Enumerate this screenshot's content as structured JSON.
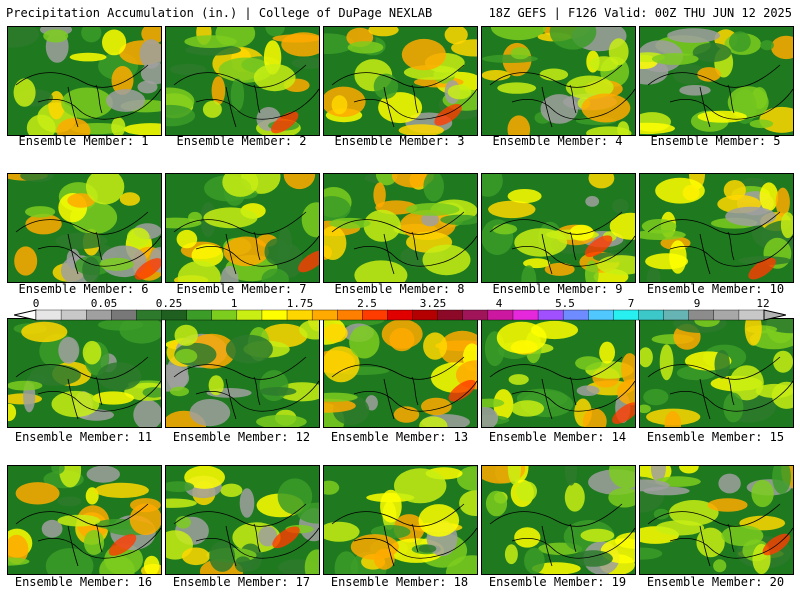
{
  "header": {
    "title": "Precipitation Accumulation (in.) | College of DuPage NEXLAB",
    "run_info": "18Z GEFS | F126 Valid: 00Z THU JUN 12 2025"
  },
  "members": [
    {
      "label": "Ensemble Member: 1"
    },
    {
      "label": "Ensemble Member: 2"
    },
    {
      "label": "Ensemble Member: 3"
    },
    {
      "label": "Ensemble Member: 4"
    },
    {
      "label": "Ensemble Member: 5"
    },
    {
      "label": "Ensemble Member: 6"
    },
    {
      "label": "Ensemble Member: 7"
    },
    {
      "label": "Ensemble Member: 8"
    },
    {
      "label": "Ensemble Member: 9"
    },
    {
      "label": "Ensemble Member: 10"
    },
    {
      "label": "Ensemble Member: 11"
    },
    {
      "label": "Ensemble Member: 12"
    },
    {
      "label": "Ensemble Member: 13"
    },
    {
      "label": "Ensemble Member: 14"
    },
    {
      "label": "Ensemble Member: 15"
    },
    {
      "label": "Ensemble Member: 16"
    },
    {
      "label": "Ensemble Member: 17"
    },
    {
      "label": "Ensemble Member: 18"
    },
    {
      "label": "Ensemble Member: 19"
    },
    {
      "label": "Ensemble Member: 20"
    }
  ],
  "color_scale": {
    "tick_labels": [
      "0",
      "0.05",
      "0.25",
      "1",
      "1.75",
      "2.5",
      "3.25",
      "4",
      "5.5",
      "7",
      "9",
      "12"
    ],
    "colors": [
      "#e6e6e6",
      "#c8c8c8",
      "#a0a0a0",
      "#787878",
      "#2d7a2d",
      "#1f5f1f",
      "#3c9c28",
      "#7ccd1e",
      "#c8ee14",
      "#ffff00",
      "#ffd700",
      "#ffaa00",
      "#ff7f00",
      "#ff3c00",
      "#e00000",
      "#b40000",
      "#8c0a28",
      "#a0145a",
      "#cc18a0",
      "#e628dc",
      "#a050ff",
      "#6e8cff",
      "#50c8ff",
      "#28f0f0",
      "#3cc8c8",
      "#66b4b4",
      "#8c8c8c",
      "#a8a8a8",
      "#c8c8c8"
    ]
  }
}
